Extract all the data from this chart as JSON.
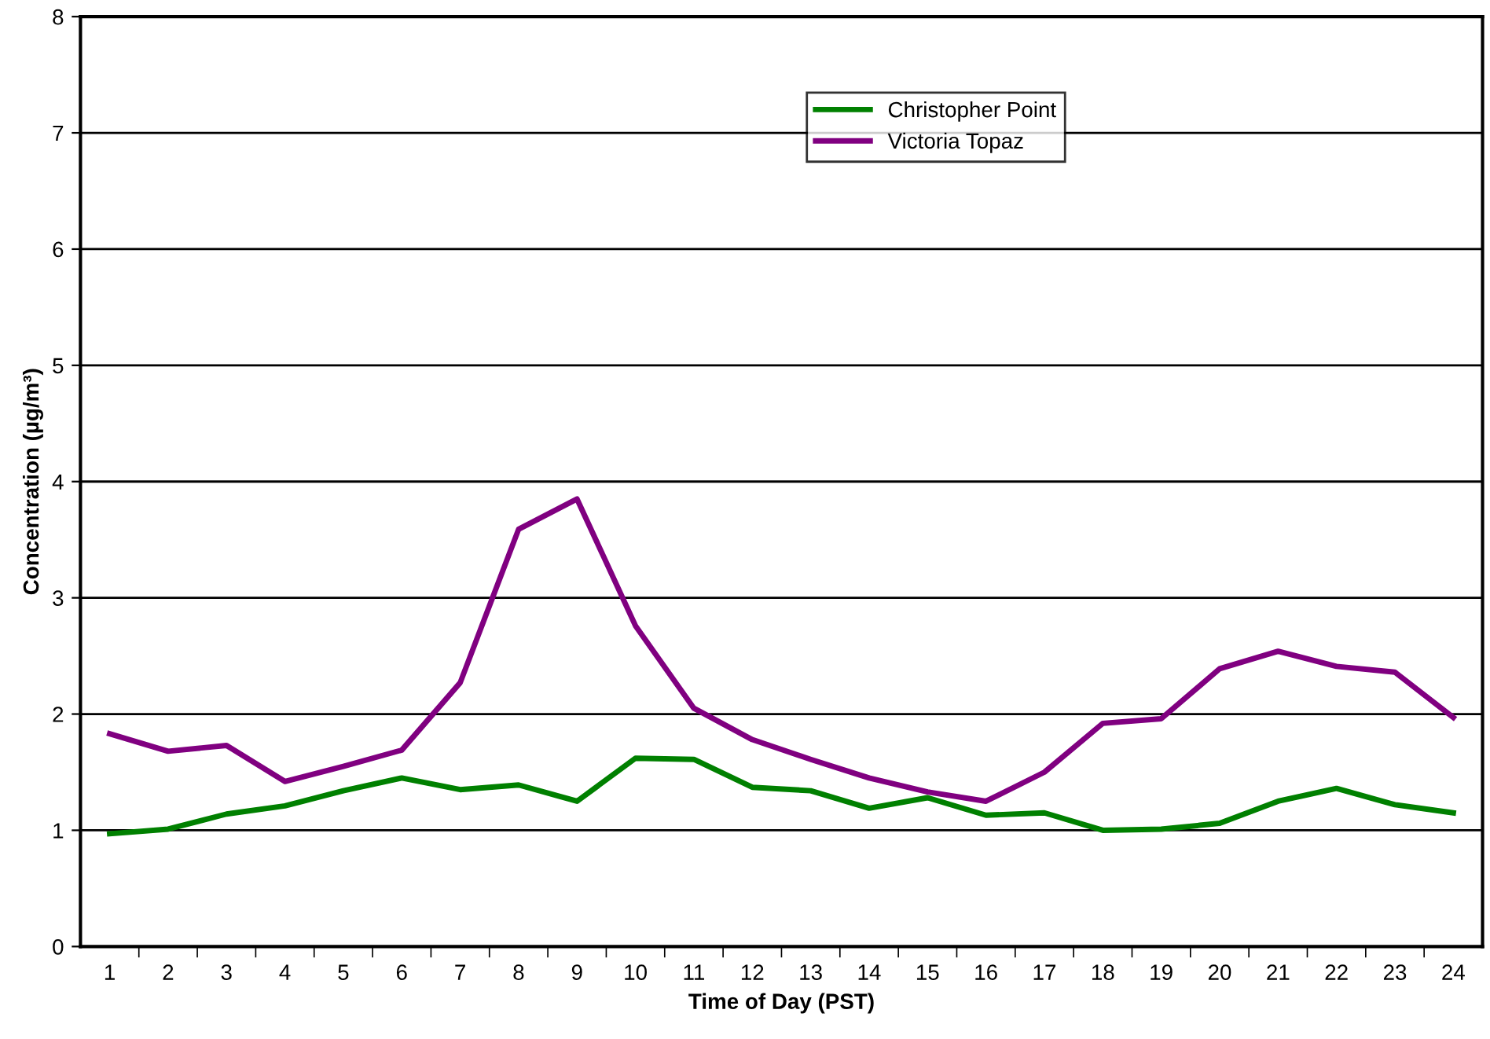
{
  "chart_data": {
    "type": "line",
    "xlabel": "Time of Day (PST)",
    "ylabel": "Concentration (µg/m³)",
    "categories": [
      "1",
      "2",
      "3",
      "4",
      "5",
      "6",
      "7",
      "8",
      "9",
      "10",
      "11",
      "12",
      "13",
      "14",
      "15",
      "16",
      "17",
      "18",
      "19",
      "20",
      "21",
      "22",
      "23",
      "24"
    ],
    "series": [
      {
        "name": "Christopher Point",
        "color": "#008000",
        "values": [
          0.97,
          1.01,
          1.14,
          1.21,
          1.34,
          1.45,
          1.35,
          1.39,
          1.25,
          1.62,
          1.61,
          1.37,
          1.34,
          1.19,
          1.28,
          1.13,
          1.15,
          1.0,
          1.01,
          1.06,
          1.25,
          1.36,
          1.22,
          1.15
        ]
      },
      {
        "name": "Victoria Topaz",
        "color": "#800080",
        "values": [
          1.83,
          1.68,
          1.73,
          1.42,
          1.55,
          1.69,
          2.27,
          3.59,
          3.85,
          2.76,
          2.05,
          1.78,
          1.61,
          1.45,
          1.33,
          1.25,
          1.5,
          1.92,
          1.96,
          2.39,
          2.54,
          2.41,
          2.36,
          1.97
        ]
      }
    ],
    "ylim": [
      0,
      8
    ],
    "yticks": [
      0,
      1,
      2,
      3,
      4,
      5,
      6,
      7,
      8
    ],
    "grid": "y",
    "legend": "top right",
    "marker": "none",
    "line_style": "solid"
  }
}
